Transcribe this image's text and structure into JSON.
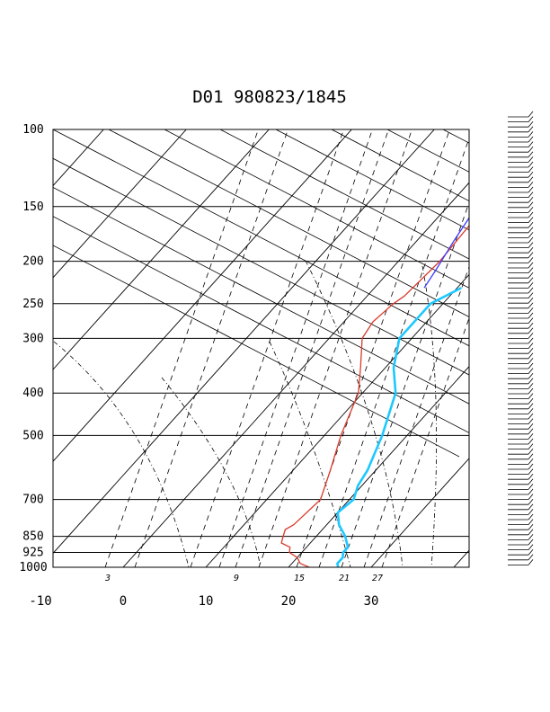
{
  "chart_data": {
    "type": "line",
    "title": "D01 980823/1845",
    "y_axis": {
      "label": "",
      "scale": "log",
      "range": [
        1000,
        100
      ],
      "tick_labels": [
        "100",
        "150",
        "200",
        "250",
        "300",
        "400",
        "500",
        "700",
        "850",
        "925",
        "1000"
      ]
    },
    "x_axis": {
      "label": "",
      "range": [
        -10,
        40
      ],
      "tick_labels": [
        "-10",
        "0",
        "10",
        "20",
        "30"
      ]
    },
    "mixing_ratio_labels": [
      "3",
      "9",
      "15",
      "21",
      "27"
    ],
    "grid": true,
    "series": [
      {
        "color": "#d93a2b",
        "x": [
          22.5,
          21.0,
          20.0,
          18.5,
          18.0,
          16.5,
          16.0,
          15.5,
          16.0,
          16.5,
          14.5,
          12.0,
          9.5,
          7.0,
          4.0,
          3.5,
          4.0,
          4.5,
          5.0,
          4.5,
          4.0
        ],
        "y": [
          1000,
          980,
          950,
          925,
          900,
          880,
          850,
          820,
          800,
          700,
          600,
          500,
          400,
          350,
          300,
          275,
          250,
          240,
          200,
          150,
          100
        ]
      },
      {
        "color": "#1ec8ff",
        "x": [
          26.0,
          25.5,
          25.5,
          25.0,
          25.0,
          23.5,
          21.5,
          20.0,
          20.5,
          19.5,
          19.0,
          17.0,
          14.0,
          11.0,
          8.5,
          8.5,
          10.5
        ],
        "y": [
          1000,
          980,
          950,
          925,
          900,
          850,
          800,
          750,
          700,
          650,
          600,
          500,
          400,
          350,
          300,
          250,
          230
        ]
      },
      {
        "color": "#3a3aff",
        "x": [
          6.0,
          5.5,
          4.5,
          3.5,
          3.5,
          4.0
        ],
        "y": [
          230,
          210,
          180,
          150,
          125,
          100
        ]
      }
    ]
  }
}
